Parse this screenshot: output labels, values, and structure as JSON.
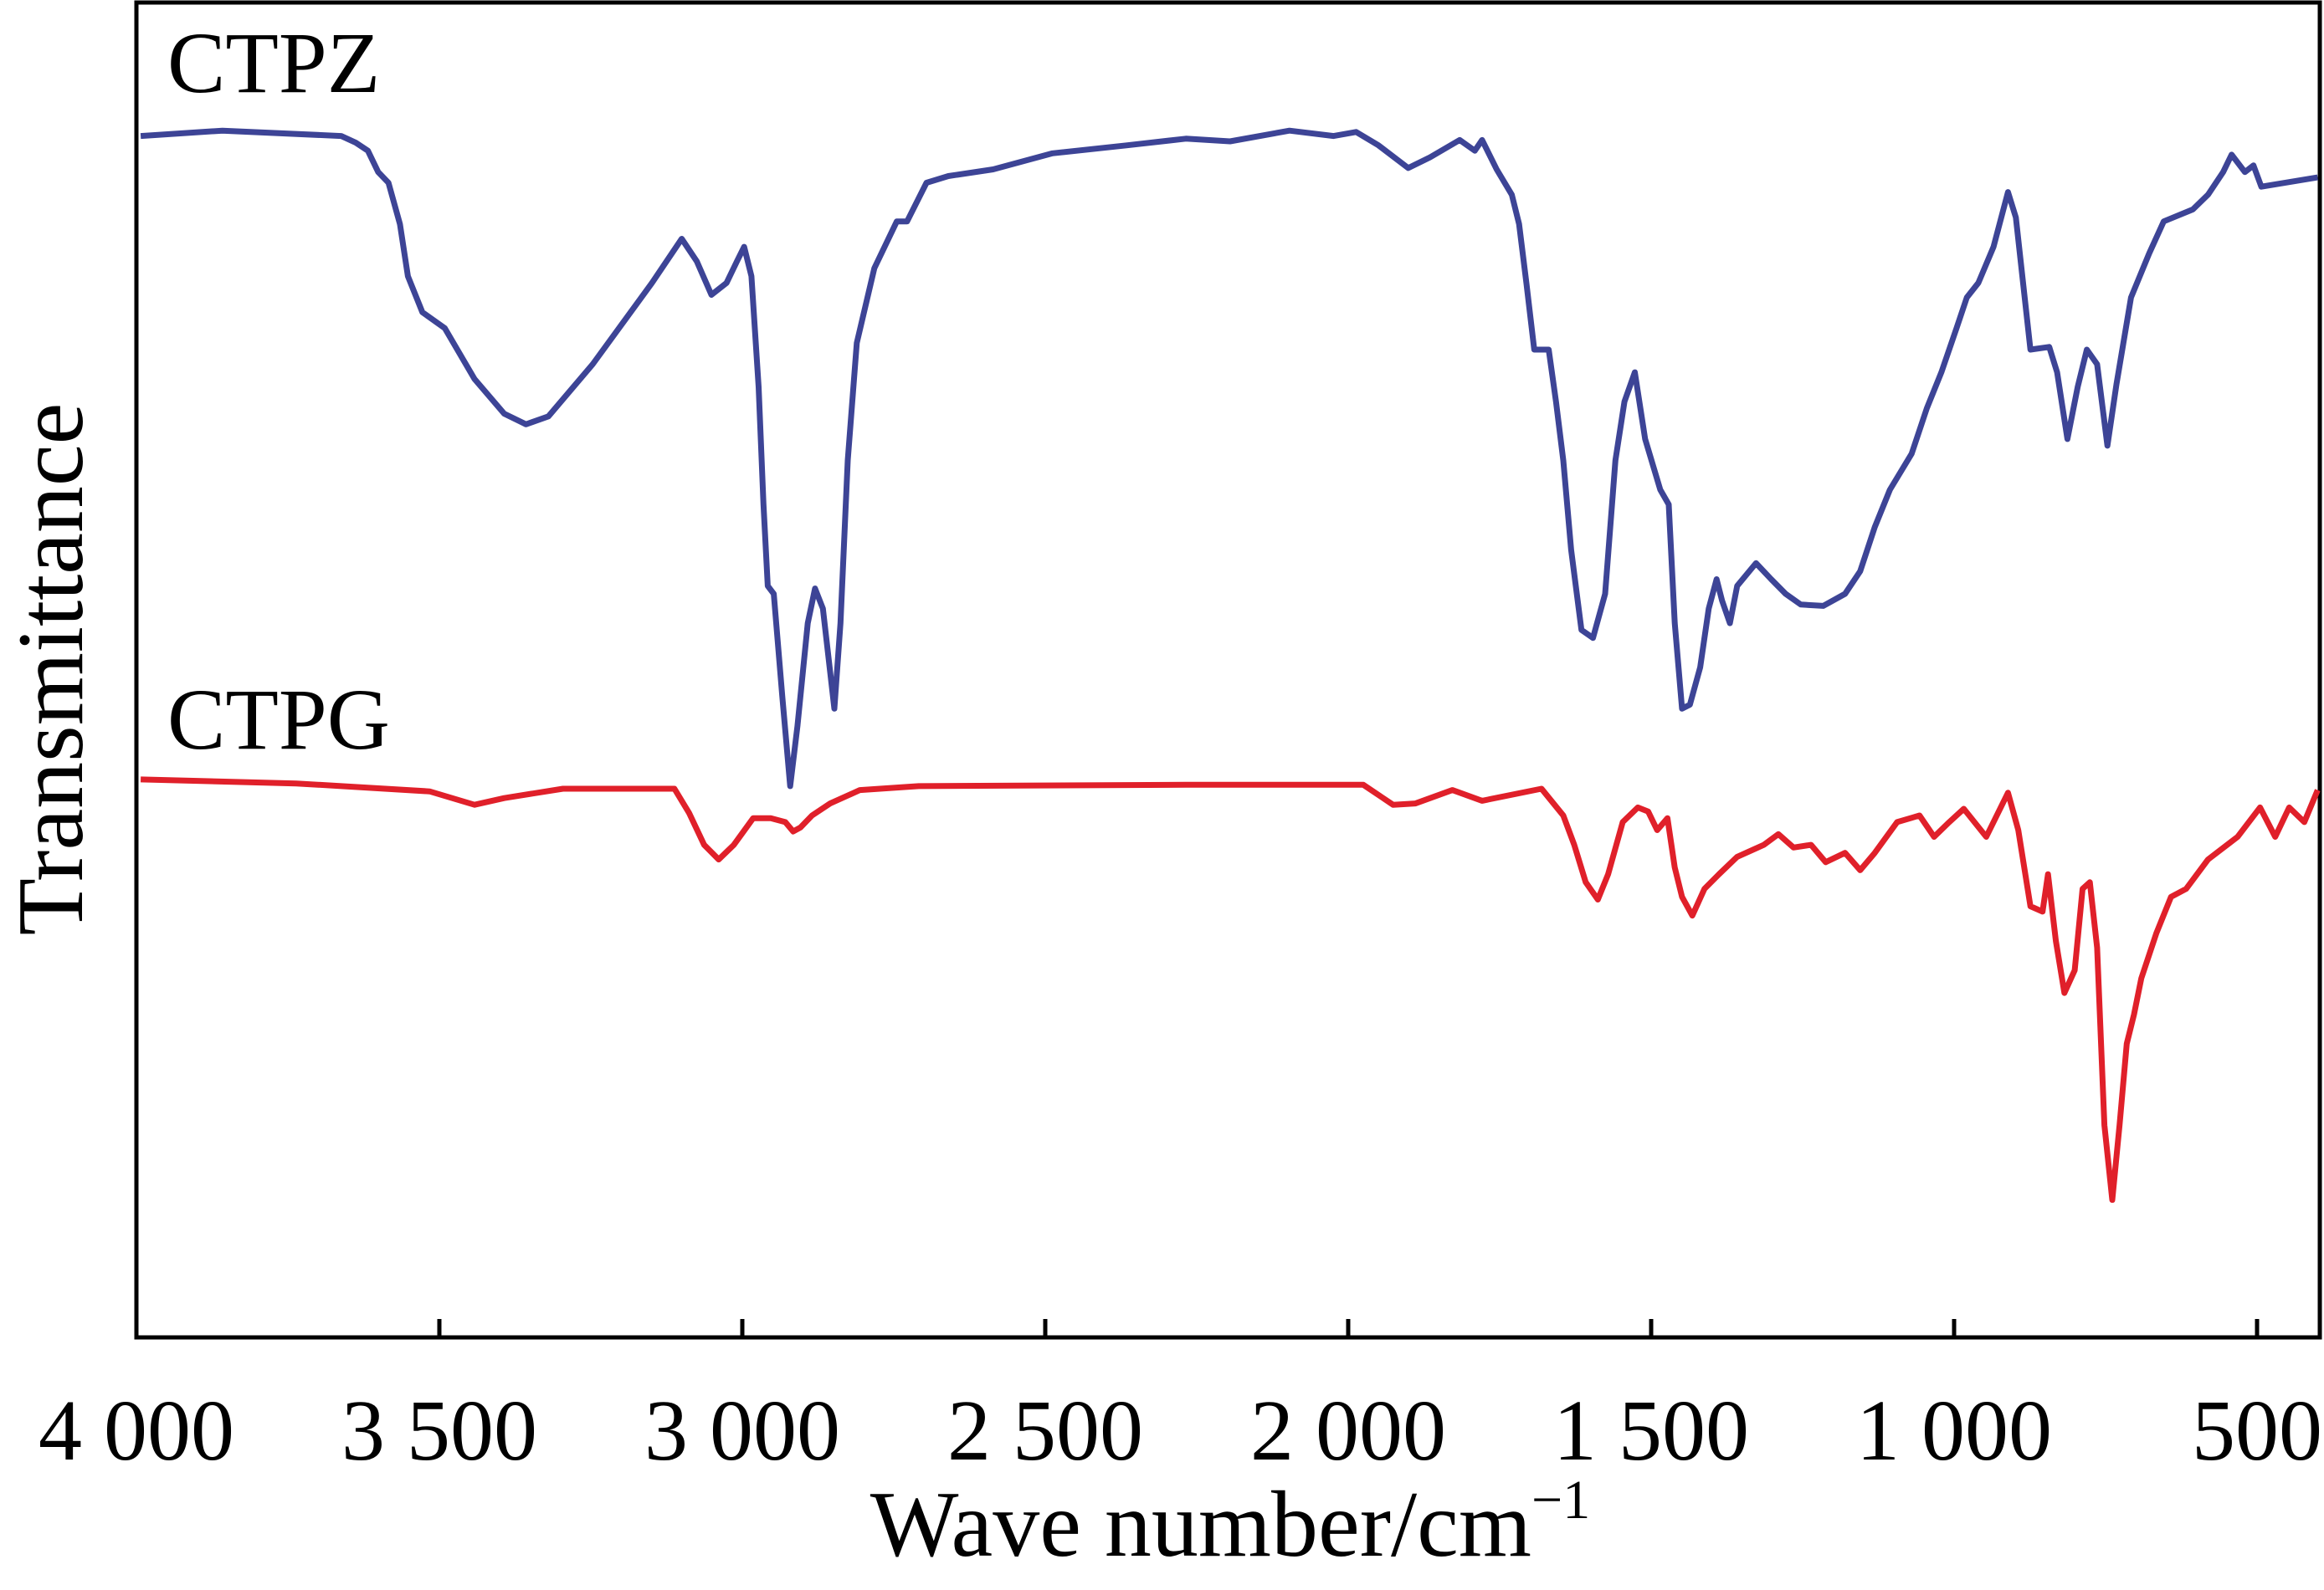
{
  "chart_data": {
    "type": "line",
    "title": "",
    "xlabel": "Wave number/cm",
    "xlabel_superscript": "−1",
    "ylabel": "Transmittance",
    "xlim": [
      4000,
      400
    ],
    "ylim": [
      0,
      100
    ],
    "x_reversed": true,
    "grid": false,
    "legend": "none (inline series labels at top-left of each curve)",
    "xticks": [
      4000,
      3500,
      3000,
      2500,
      2000,
      1500,
      1000,
      500
    ],
    "xtick_labels": [
      "4 000",
      "3 500",
      "3 000",
      "2 500",
      "2 000",
      "1 500",
      "1 000",
      "500"
    ],
    "series": [
      {
        "name": "CTPZ",
        "color": "#3d4496",
        "x": [
          3993,
          3858,
          3662,
          3638,
          3618,
          3601,
          3584,
          3565,
          3552,
          3528,
          3491,
          3442,
          3393,
          3357,
          3320,
          3247,
          3149,
          3100,
          3075,
          3051,
          3026,
          3009,
          2997,
          2985,
          2973,
          2965,
          2958,
          2948,
          2934,
          2921,
          2909,
          2892,
          2880,
          2867,
          2848,
          2838,
          2826,
          2811,
          2782,
          2745,
          2728,
          2696,
          2660,
          2586,
          2488,
          2366,
          2268,
          2195,
          2097,
          2024,
          1987,
          1950,
          1901,
          1865,
          1816,
          1791,
          1779,
          1755,
          1730,
          1718,
          1706,
          1693,
          1669,
          1657,
          1645,
          1632,
          1615,
          1596,
          1576,
          1559,
          1544,
          1527,
          1510,
          1485,
          1471,
          1461,
          1449,
          1436,
          1419,
          1405,
          1392,
          1383,
          1370,
          1358,
          1327,
          1302,
          1278,
          1253,
          1216,
          1180,
          1155,
          1131,
          1106,
          1070,
          1045,
          1021,
          996,
          979,
          960,
          935,
          911,
          898,
          874,
          843,
          830,
          813,
          796,
          781,
          764,
          747,
          732,
          708,
          678,
          654,
          606,
          581,
          556,
          542,
          520,
          506,
          493,
          400
        ],
        "y": [
          90.0,
          90.4,
          90.0,
          89.5,
          88.9,
          87.3,
          86.5,
          83.4,
          79.5,
          76.8,
          75.6,
          71.8,
          69.2,
          68.4,
          69.0,
          72.9,
          79.0,
          82.3,
          80.6,
          78.1,
          79.0,
          80.6,
          81.7,
          79.5,
          71.2,
          62.4,
          56.3,
          55.7,
          48.0,
          41.3,
          45.8,
          53.5,
          56.1,
          54.6,
          47.1,
          53.5,
          65.7,
          74.5,
          80.1,
          83.6,
          83.6,
          86.5,
          87.0,
          87.5,
          88.7,
          89.3,
          89.8,
          89.6,
          90.4,
          90.0,
          90.3,
          89.3,
          87.6,
          88.4,
          89.7,
          88.9,
          89.7,
          87.5,
          85.6,
          83.4,
          79.0,
          74.0,
          74.0,
          70.1,
          65.7,
          59.0,
          53.0,
          52.4,
          55.7,
          65.7,
          70.1,
          72.3,
          67.3,
          63.5,
          62.4,
          53.5,
          47.1,
          47.4,
          50.2,
          54.6,
          56.8,
          55.2,
          53.5,
          56.3,
          58.0,
          56.8,
          55.7,
          54.9,
          54.8,
          55.7,
          57.4,
          60.7,
          63.5,
          66.2,
          69.6,
          72.3,
          75.6,
          77.9,
          79.0,
          81.7,
          85.8,
          83.9,
          74.0,
          74.2,
          72.3,
          67.3,
          71.2,
          74.0,
          72.9,
          66.8,
          71.4,
          77.9,
          81.2,
          83.6,
          84.5,
          85.6,
          87.3,
          88.6,
          87.3,
          87.8,
          86.2,
          86.9
        ]
      },
      {
        "name": "CTPG",
        "color": "#e0202a",
        "x": [
          3993,
          3736,
          3516,
          3442,
          3393,
          3296,
          3112,
          3088,
          3063,
          3039,
          3014,
          2982,
          2953,
          2929,
          2916,
          2904,
          2885,
          2855,
          2806,
          2709,
          2268,
          1975,
          1926,
          1889,
          1828,
          1779,
          1681,
          1645,
          1627,
          1608,
          1588,
          1571,
          1547,
          1522,
          1505,
          1490,
          1473,
          1461,
          1449,
          1432,
          1412,
          1388,
          1358,
          1314,
          1290,
          1265,
          1236,
          1212,
          1180,
          1155,
          1131,
          1094,
          1057,
          1033,
          1008,
          984,
          947,
          911,
          894,
          874,
          854,
          845,
          832,
          818,
          801,
          788,
          776,
          764,
          752,
          739,
          727,
          715,
          703,
          691,
          666,
          642,
          617,
          581,
          532,
          495,
          470,
          447,
          422,
          400
        ],
        "y": [
          41.8,
          41.5,
          40.9,
          39.9,
          40.4,
          41.1,
          41.1,
          39.3,
          36.9,
          35.8,
          36.9,
          38.9,
          38.9,
          38.6,
          37.9,
          38.2,
          39.1,
          40.0,
          41.0,
          41.3,
          41.4,
          41.4,
          39.9,
          40.0,
          41.0,
          40.2,
          41.1,
          39.1,
          36.9,
          34.1,
          32.8,
          34.7,
          38.6,
          39.7,
          39.4,
          38.0,
          38.9,
          35.2,
          33.0,
          31.6,
          33.6,
          34.7,
          36.0,
          36.9,
          37.7,
          36.7,
          36.9,
          35.6,
          36.3,
          35.0,
          36.3,
          38.6,
          39.1,
          37.5,
          38.6,
          39.6,
          37.5,
          40.8,
          38.0,
          32.3,
          31.9,
          34.7,
          29.7,
          25.8,
          27.5,
          33.6,
          34.1,
          29.2,
          15.9,
          10.3,
          15.9,
          22.0,
          24.2,
          26.9,
          30.3,
          33.0,
          33.6,
          35.8,
          37.5,
          39.7,
          37.5,
          39.7,
          38.6,
          41.0
        ]
      }
    ]
  }
}
